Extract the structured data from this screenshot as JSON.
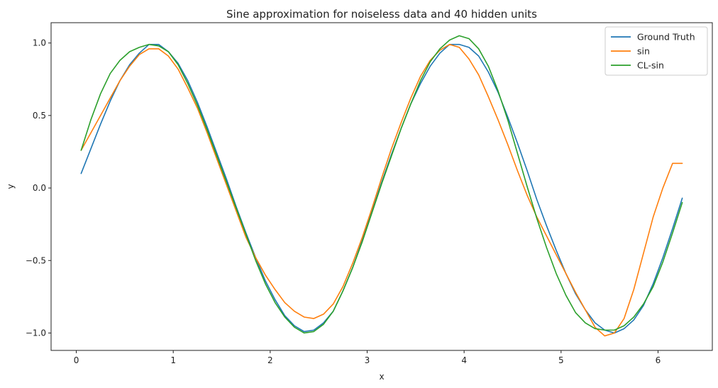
{
  "chart_data": {
    "type": "line",
    "title": "Sine approximation for noiseless data and 40 hidden units",
    "xlabel": "x",
    "ylabel": "y",
    "xlim": [
      -0.26,
      6.56
    ],
    "ylim": [
      -1.12,
      1.14
    ],
    "xticks": [
      0,
      1,
      2,
      3,
      4,
      5,
      6
    ],
    "xtick_labels": [
      "0",
      "1",
      "2",
      "3",
      "4",
      "5",
      "6"
    ],
    "yticks": [
      -1.0,
      -0.5,
      0.0,
      0.5,
      1.0
    ],
    "ytick_labels": [
      "−1.0",
      "−0.5",
      "0.0",
      "0.5",
      "1.0"
    ],
    "grid": false,
    "legend_position": "top-right",
    "x": [
      0.05,
      0.15,
      0.25,
      0.35,
      0.45,
      0.55,
      0.65,
      0.75,
      0.85,
      0.95,
      1.05,
      1.15,
      1.25,
      1.35,
      1.45,
      1.55,
      1.65,
      1.75,
      1.85,
      1.95,
      2.05,
      2.15,
      2.25,
      2.35,
      2.45,
      2.55,
      2.65,
      2.75,
      2.85,
      2.95,
      3.05,
      3.15,
      3.25,
      3.35,
      3.45,
      3.55,
      3.65,
      3.75,
      3.85,
      3.95,
      4.05,
      4.15,
      4.25,
      4.35,
      4.45,
      4.55,
      4.65,
      4.75,
      4.85,
      4.95,
      5.05,
      5.15,
      5.25,
      5.35,
      5.45,
      5.55,
      5.65,
      5.75,
      5.85,
      5.95,
      6.05,
      6.15,
      6.25
    ],
    "series": [
      {
        "name": "Ground Truth",
        "color": "#1f77b4",
        "values": [
          0.1,
          0.27,
          0.44,
          0.6,
          0.74,
          0.85,
          0.93,
          0.99,
          0.99,
          0.94,
          0.86,
          0.74,
          0.59,
          0.42,
          0.24,
          0.06,
          -0.13,
          -0.31,
          -0.48,
          -0.64,
          -0.77,
          -0.88,
          -0.95,
          -0.99,
          -0.98,
          -0.93,
          -0.85,
          -0.71,
          -0.55,
          -0.36,
          -0.16,
          0.04,
          0.23,
          0.41,
          0.58,
          0.72,
          0.84,
          0.93,
          0.99,
          0.99,
          0.97,
          0.91,
          0.8,
          0.66,
          0.49,
          0.31,
          0.12,
          -0.08,
          -0.26,
          -0.43,
          -0.59,
          -0.73,
          -0.84,
          -0.93,
          -0.98,
          -1.0,
          -0.97,
          -0.91,
          -0.81,
          -0.66,
          -0.48,
          -0.28,
          -0.07
        ]
      },
      {
        "name": "sin",
        "color": "#ff7f0e",
        "values": [
          0.26,
          0.38,
          0.5,
          0.62,
          0.74,
          0.84,
          0.92,
          0.96,
          0.96,
          0.91,
          0.82,
          0.69,
          0.55,
          0.38,
          0.2,
          0.02,
          -0.16,
          -0.34,
          -0.48,
          -0.6,
          -0.7,
          -0.79,
          -0.85,
          -0.89,
          -0.9,
          -0.87,
          -0.8,
          -0.68,
          -0.52,
          -0.34,
          -0.14,
          0.07,
          0.27,
          0.45,
          0.62,
          0.77,
          0.88,
          0.95,
          0.99,
          0.97,
          0.89,
          0.78,
          0.63,
          0.47,
          0.3,
          0.12,
          -0.05,
          -0.2,
          -0.33,
          -0.46,
          -0.59,
          -0.72,
          -0.84,
          -0.96,
          -1.02,
          -1.0,
          -0.9,
          -0.7,
          -0.45,
          -0.2,
          0.0,
          0.17,
          0.17
        ]
      },
      {
        "name": "CL-sin",
        "color": "#2ca02c",
        "values": [
          0.26,
          0.47,
          0.65,
          0.79,
          0.88,
          0.94,
          0.97,
          0.99,
          0.98,
          0.94,
          0.85,
          0.72,
          0.57,
          0.4,
          0.22,
          0.04,
          -0.14,
          -0.32,
          -0.5,
          -0.66,
          -0.79,
          -0.89,
          -0.96,
          -1.0,
          -0.99,
          -0.94,
          -0.85,
          -0.71,
          -0.55,
          -0.37,
          -0.17,
          0.03,
          0.22,
          0.41,
          0.58,
          0.74,
          0.87,
          0.96,
          1.02,
          1.05,
          1.03,
          0.96,
          0.84,
          0.67,
          0.47,
          0.24,
          0.01,
          -0.21,
          -0.41,
          -0.59,
          -0.74,
          -0.86,
          -0.93,
          -0.97,
          -0.98,
          -0.98,
          -0.95,
          -0.89,
          -0.8,
          -0.68,
          -0.51,
          -0.31,
          -0.1
        ]
      }
    ]
  }
}
